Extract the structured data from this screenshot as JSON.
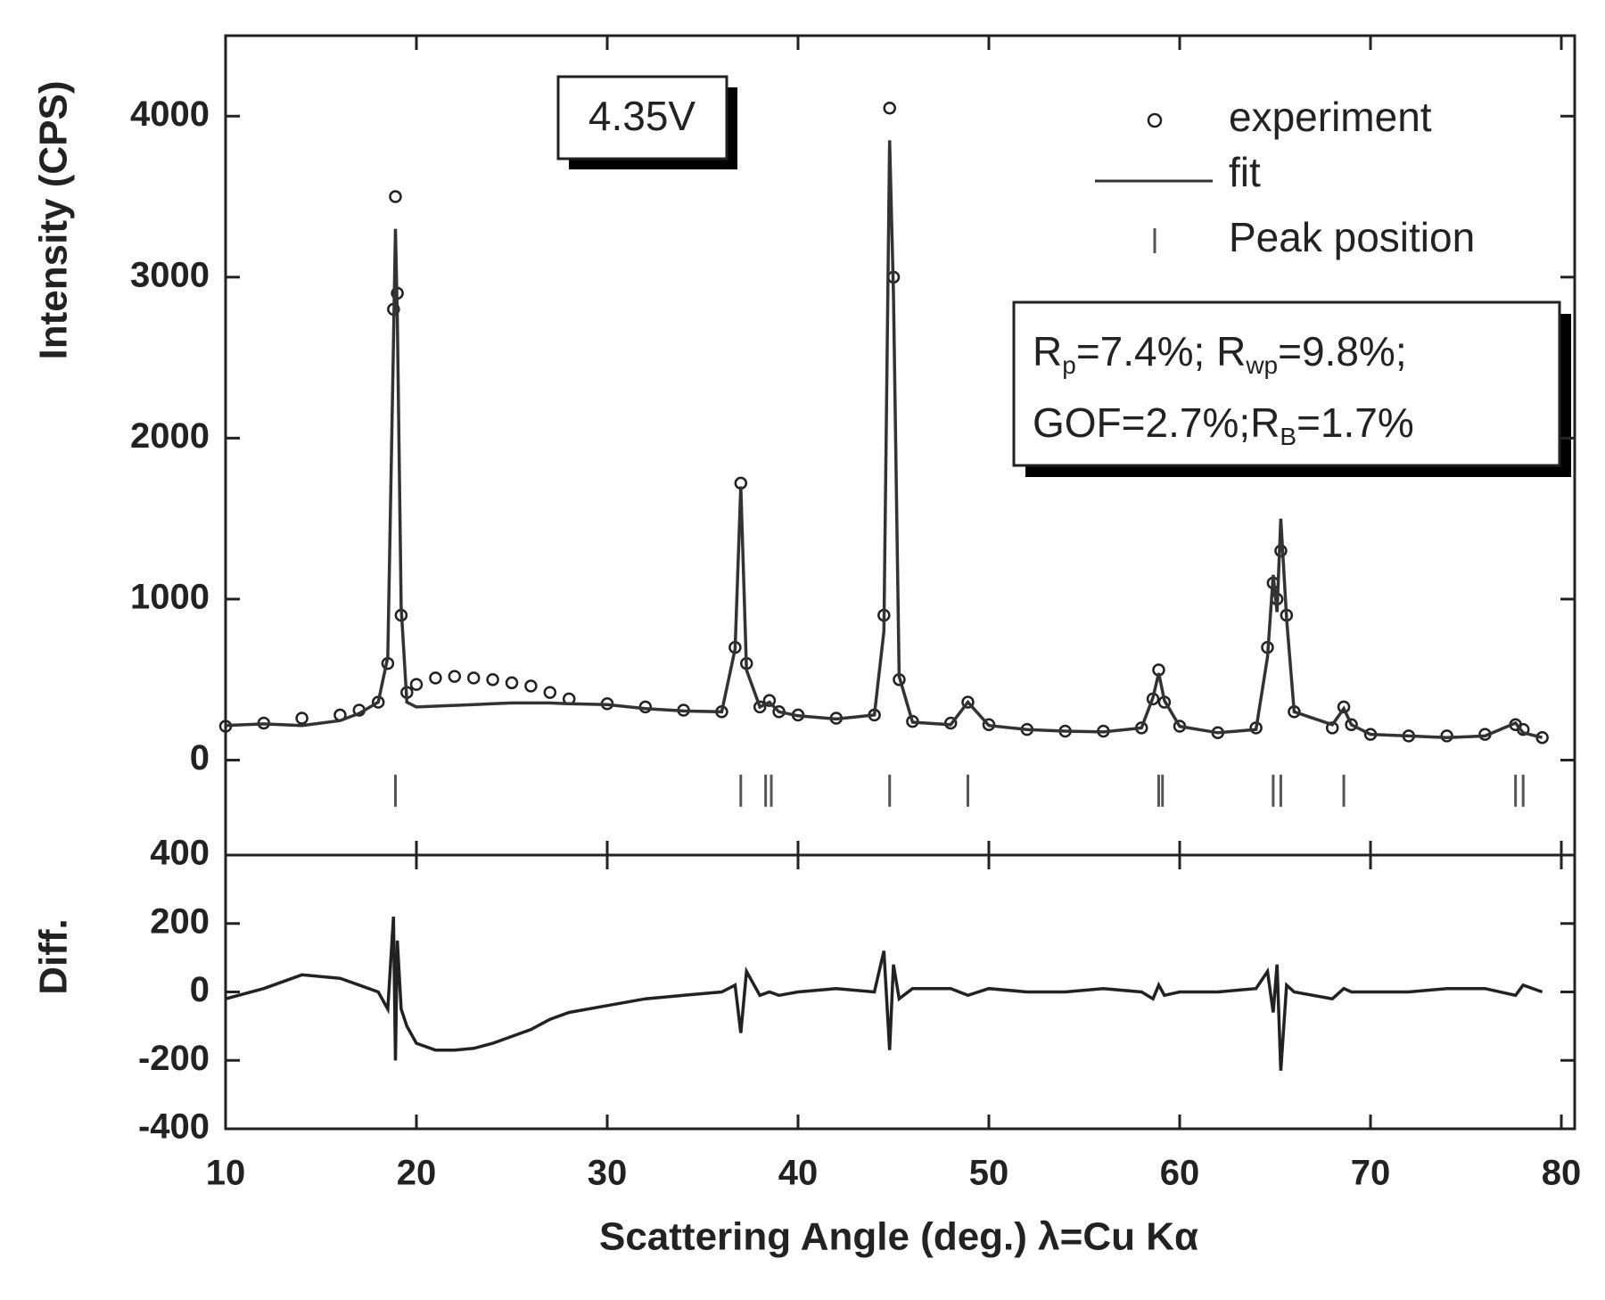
{
  "chart_data": [
    {
      "type": "scatter",
      "ylabel": "Intensity (CPS)",
      "annotation": "4.35V",
      "stats": [
        [
          "R",
          "p",
          "=7.4%; R",
          "wp",
          "=9.8%;"
        ],
        [
          "GOF=2.7%;R",
          "B",
          "=1.7%"
        ]
      ],
      "xlim": [
        10,
        80.7
      ],
      "xticks": [
        10,
        20,
        30,
        40,
        50,
        60,
        70,
        80
      ],
      "ylim": [
        -590,
        4500
      ],
      "yticks": [
        0,
        1000,
        2000,
        3000,
        4000
      ],
      "legend": "upper right",
      "x": [
        10,
        12,
        14,
        16,
        17,
        18,
        18.5,
        18.8,
        18.9,
        19.0,
        19.2,
        19.5,
        20,
        21,
        22,
        23,
        24,
        25,
        26,
        27,
        28,
        30,
        32,
        34,
        36,
        36.7,
        37.0,
        37.3,
        38,
        38.5,
        39,
        40,
        42,
        44,
        44.5,
        44.8,
        45.0,
        45.3,
        46,
        48,
        48.9,
        50,
        52,
        54,
        56,
        58,
        58.6,
        58.9,
        59.2,
        60,
        62,
        64,
        64.6,
        64.9,
        65.1,
        65.3,
        65.6,
        66,
        68,
        68.6,
        69,
        70,
        72,
        74,
        76,
        77.6,
        78,
        79
      ],
      "series": [
        {
          "name": "experiment",
          "style": "circle",
          "color": "#222222",
          "values": [
            210,
            230,
            260,
            280,
            310,
            360,
            600,
            2800,
            3500,
            2900,
            900,
            420,
            470,
            510,
            520,
            510,
            500,
            480,
            460,
            420,
            380,
            350,
            330,
            310,
            300,
            700,
            1720,
            600,
            330,
            370,
            300,
            280,
            260,
            280,
            900,
            4050,
            3000,
            500,
            240,
            230,
            360,
            220,
            190,
            180,
            180,
            200,
            380,
            560,
            360,
            210,
            170,
            200,
            700,
            1100,
            1000,
            1300,
            900,
            300,
            200,
            330,
            220,
            160,
            150,
            150,
            160,
            220,
            190,
            140
          ]
        },
        {
          "name": "fit",
          "style": "line",
          "color": "#333333",
          "values": [
            215,
            225,
            215,
            245,
            290,
            360,
            640,
            2600,
            3300,
            2750,
            950,
            360,
            330,
            335,
            340,
            345,
            350,
            355,
            355,
            355,
            350,
            345,
            320,
            305,
            300,
            690,
            1700,
            560,
            330,
            360,
            300,
            275,
            255,
            280,
            800,
            3850,
            2900,
            520,
            235,
            220,
            360,
            215,
            190,
            180,
            175,
            200,
            390,
            540,
            370,
            210,
            170,
            190,
            640,
            1150,
            920,
            1500,
            880,
            300,
            220,
            320,
            220,
            160,
            150,
            140,
            150,
            230,
            170,
            140
          ]
        },
        {
          "name": "Peak position",
          "style": "tick",
          "color": "#555555",
          "x": [
            18.9,
            37.0,
            38.3,
            38.6,
            44.8,
            48.9,
            58.9,
            59.1,
            64.9,
            65.3,
            68.6,
            77.6,
            78.0
          ],
          "values": [
            -190,
            -190,
            -190,
            -190,
            -190,
            -190,
            -190,
            -190,
            -190,
            -190,
            -190,
            -190,
            -190
          ]
        }
      ]
    },
    {
      "type": "line",
      "ylabel": "Diff.",
      "xlabel": "Scattering Angle (deg.) λ=Cu Kα",
      "xlim": [
        10,
        80.7
      ],
      "xticks": [
        10,
        20,
        30,
        40,
        50,
        60,
        70,
        80
      ],
      "ylim": [
        -400,
        400
      ],
      "yticks": [
        -400,
        -200,
        0,
        200,
        400
      ],
      "x": [
        10,
        12,
        14,
        16,
        17,
        18,
        18.5,
        18.8,
        18.9,
        19.0,
        19.2,
        19.5,
        20,
        21,
        22,
        23,
        24,
        25,
        26,
        27,
        28,
        30,
        32,
        34,
        36,
        36.7,
        37.0,
        37.3,
        38,
        38.5,
        39,
        40,
        42,
        44,
        44.5,
        44.8,
        45.0,
        45.3,
        46,
        48,
        48.9,
        50,
        52,
        54,
        56,
        58,
        58.6,
        58.9,
        59.2,
        60,
        62,
        64,
        64.6,
        64.9,
        65.1,
        65.3,
        65.6,
        66,
        68,
        68.6,
        69,
        70,
        72,
        74,
        76,
        77.6,
        78,
        79
      ],
      "series": [
        {
          "style": "line",
          "color": "#222222",
          "values": [
            -20,
            10,
            50,
            40,
            20,
            0,
            -50,
            220,
            -200,
            150,
            -50,
            -100,
            -150,
            -170,
            -170,
            -165,
            -150,
            -130,
            -110,
            -80,
            -60,
            -40,
            -20,
            -10,
            0,
            20,
            -120,
            60,
            -10,
            0,
            -10,
            0,
            10,
            0,
            120,
            -170,
            80,
            -20,
            10,
            10,
            -10,
            10,
            0,
            0,
            10,
            0,
            -20,
            20,
            -10,
            0,
            0,
            10,
            60,
            -60,
            80,
            -230,
            20,
            0,
            -20,
            10,
            0,
            0,
            0,
            10,
            10,
            -10,
            20,
            0
          ]
        }
      ]
    }
  ]
}
